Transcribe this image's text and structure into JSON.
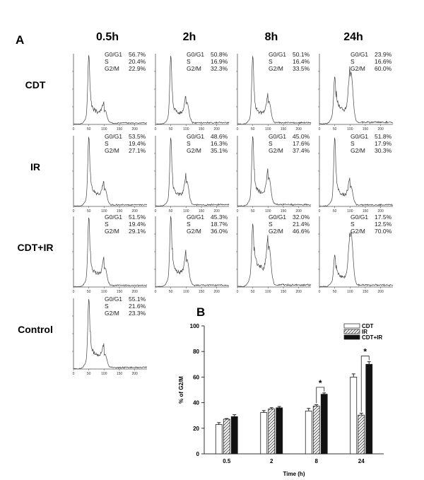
{
  "panel_a": {
    "letter": "A",
    "columns": [
      "0.5h",
      "2h",
      "8h",
      "24h"
    ],
    "rows": [
      "CDT",
      "IR",
      "CDT+IR",
      "Control"
    ],
    "phase_labels": [
      "G0/G1",
      "S",
      "G2/M"
    ],
    "histogram_x_ticks": [
      "0",
      "50",
      "100",
      "150",
      "200"
    ],
    "panels": [
      [
        [
          "56.7%",
          "20.4%",
          "22.9%"
        ],
        [
          "50.8%",
          "16.9%",
          "32.3%"
        ],
        [
          "50.1%",
          "16.4%",
          "33.5%"
        ],
        [
          "23.9%",
          "16.6%",
          "60.0%"
        ]
      ],
      [
        [
          "53.5%",
          "19.4%",
          "27.1%"
        ],
        [
          "48.6%",
          "16.3%",
          "35.1%"
        ],
        [
          "45.0%",
          "17.6%",
          "37.4%"
        ],
        [
          "51.8%",
          "17.9%",
          "30.3%"
        ]
      ],
      [
        [
          "51.5%",
          "19.4%",
          "29.1%"
        ],
        [
          "45.3%",
          "18.7%",
          "36.0%"
        ],
        [
          "32.0%",
          "21.4%",
          "46.6%"
        ],
        [
          "17.5%",
          "12.5%",
          "70.0%"
        ]
      ],
      [
        [
          "55.1%",
          "21.6%",
          "23.3%"
        ]
      ]
    ]
  },
  "chart_data": {
    "letter": "B",
    "type": "bar",
    "categories": [
      "0.5",
      "2",
      "8",
      "24"
    ],
    "xlabel": "Time (h)",
    "ylabel": "% of G2/M",
    "ylim": [
      0,
      100
    ],
    "yticks": [
      "0",
      "20",
      "40",
      "60",
      "80",
      "100"
    ],
    "legend_position": "top-right",
    "series": [
      {
        "name": "CDT",
        "values": [
          22.9,
          32.3,
          33.5,
          60.0
        ],
        "errors": [
          1.5,
          1.5,
          2,
          2.5
        ],
        "fill": "white"
      },
      {
        "name": "IR",
        "values": [
          27.1,
          35.1,
          37.4,
          30.3
        ],
        "errors": [
          0.5,
          1,
          1,
          1.5
        ],
        "fill": "hatched"
      },
      {
        "name": "CDT+IR",
        "values": [
          29.1,
          36.0,
          46.6,
          70.0
        ],
        "errors": [
          1.5,
          1,
          1,
          2
        ],
        "fill": "black"
      }
    ],
    "significance": [
      {
        "category": "8",
        "between": [
          "IR",
          "CDT+IR"
        ],
        "label": "*"
      },
      {
        "category": "24",
        "between": [
          "IR",
          "CDT+IR"
        ],
        "label": "*"
      }
    ]
  }
}
